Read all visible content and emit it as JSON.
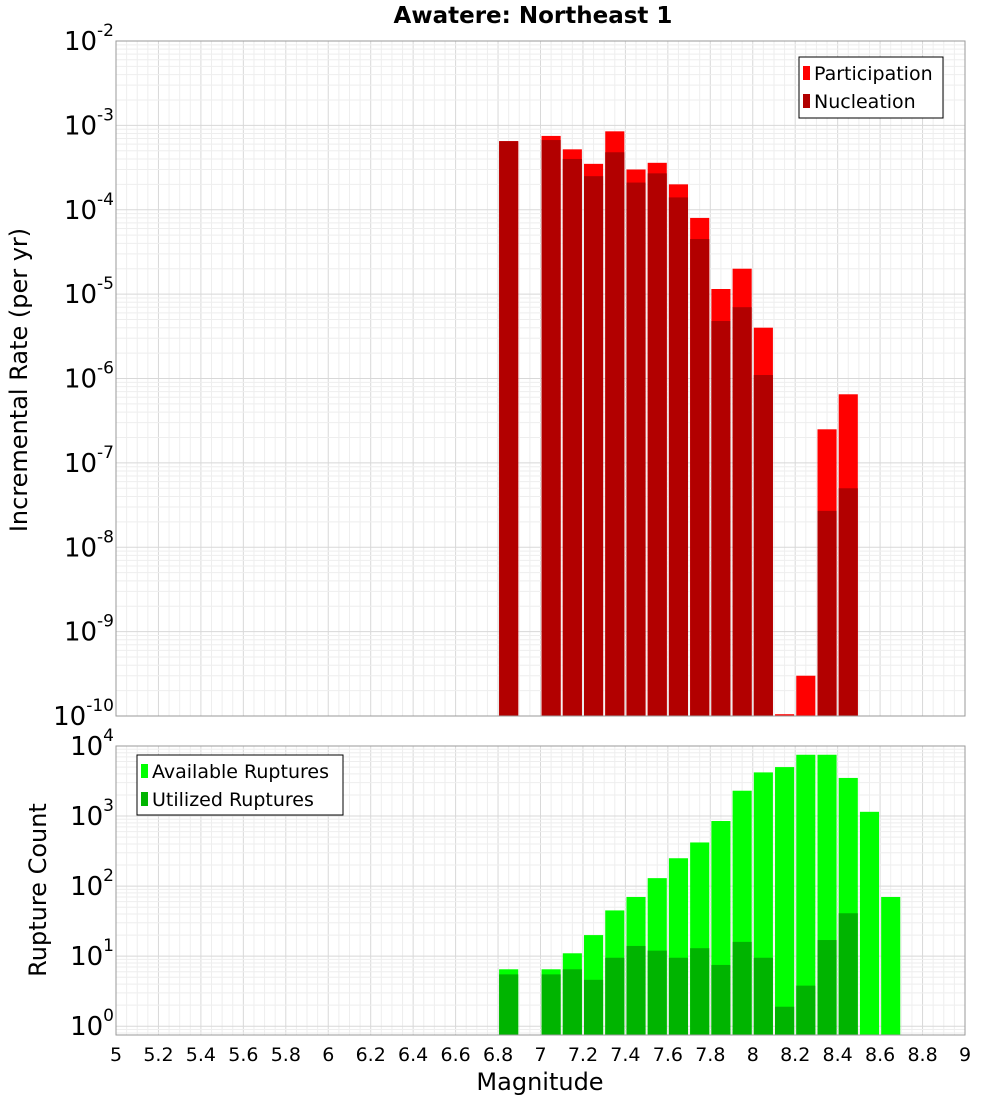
{
  "chart_data": [
    {
      "type": "bar",
      "title": "Awatere: Northeast 1",
      "ylabel": "Incremental Rate (per yr)",
      "xlabel": "",
      "yscale": "log",
      "ylim": [
        1e-10,
        0.01
      ],
      "xlim": [
        5,
        9
      ],
      "y_tick_exponents": [
        "-10",
        "-9",
        "-8",
        "-7",
        "-6",
        "-5",
        "-4",
        "-3",
        "-2"
      ],
      "y_tick_base": "10",
      "grid": true,
      "legend_position": "top-right",
      "bar_width": 0.09,
      "x": [
        6.85,
        7.05,
        7.15,
        7.25,
        7.35,
        7.45,
        7.55,
        7.65,
        7.75,
        7.85,
        7.95,
        8.05,
        8.15,
        8.25,
        8.35,
        8.45
      ],
      "series": [
        {
          "name": "Participation",
          "color": "#ff0000",
          "values": [
            0.00065,
            0.00075,
            0.00052,
            0.00035,
            0.00085,
            0.0003,
            0.00036,
            0.0002,
            8e-05,
            1.15e-05,
            2e-05,
            4e-06,
            1.05e-10,
            3e-10,
            2.5e-07,
            6.5e-07
          ]
        },
        {
          "name": "Nucleation",
          "color": "#b20000",
          "values": [
            0.00065,
            0.00067,
            0.0004,
            0.00025,
            0.00048,
            0.00021,
            0.00027,
            0.00014,
            4.5e-05,
            4.8e-06,
            7e-06,
            1.1e-06,
            null,
            null,
            2.7e-08,
            5e-08
          ]
        }
      ]
    },
    {
      "type": "bar",
      "ylabel": "Rupture Count",
      "xlabel": "Magnitude",
      "yscale": "log",
      "ylim": [
        0.75,
        10000
      ],
      "xlim": [
        5,
        9
      ],
      "y_tick_exponents": [
        "0",
        "1",
        "2",
        "3",
        "4"
      ],
      "y_tick_base": "10",
      "x_tick_labels": [
        "5",
        "5.2",
        "5.4",
        "5.6",
        "5.8",
        "6",
        "6.2",
        "6.4",
        "6.6",
        "6.8",
        "7",
        "7.2",
        "7.4",
        "7.6",
        "7.8",
        "8",
        "8.2",
        "8.4",
        "8.6",
        "8.8",
        "9"
      ],
      "grid": true,
      "legend_position": "top-left",
      "bar_width": 0.09,
      "x": [
        6.85,
        7.05,
        7.15,
        7.25,
        7.35,
        7.45,
        7.55,
        7.65,
        7.75,
        7.85,
        7.95,
        8.05,
        8.15,
        8.25,
        8.35,
        8.45,
        8.55,
        8.65
      ],
      "series": [
        {
          "name": "Available Ruptures",
          "color": "#00ff00",
          "values": [
            6.5,
            6.5,
            11,
            20,
            45,
            70,
            130,
            250,
            420,
            850,
            2300,
            4200,
            5000,
            7500,
            7500,
            3500,
            1150,
            70
          ]
        },
        {
          "name": "Utilized Ruptures",
          "color": "#00b400",
          "values": [
            5.5,
            5.5,
            6.5,
            4.6,
            9.5,
            14,
            12,
            9.5,
            13,
            7.5,
            16,
            9.5,
            1.9,
            3.8,
            17,
            41,
            null,
            null
          ]
        }
      ]
    }
  ]
}
